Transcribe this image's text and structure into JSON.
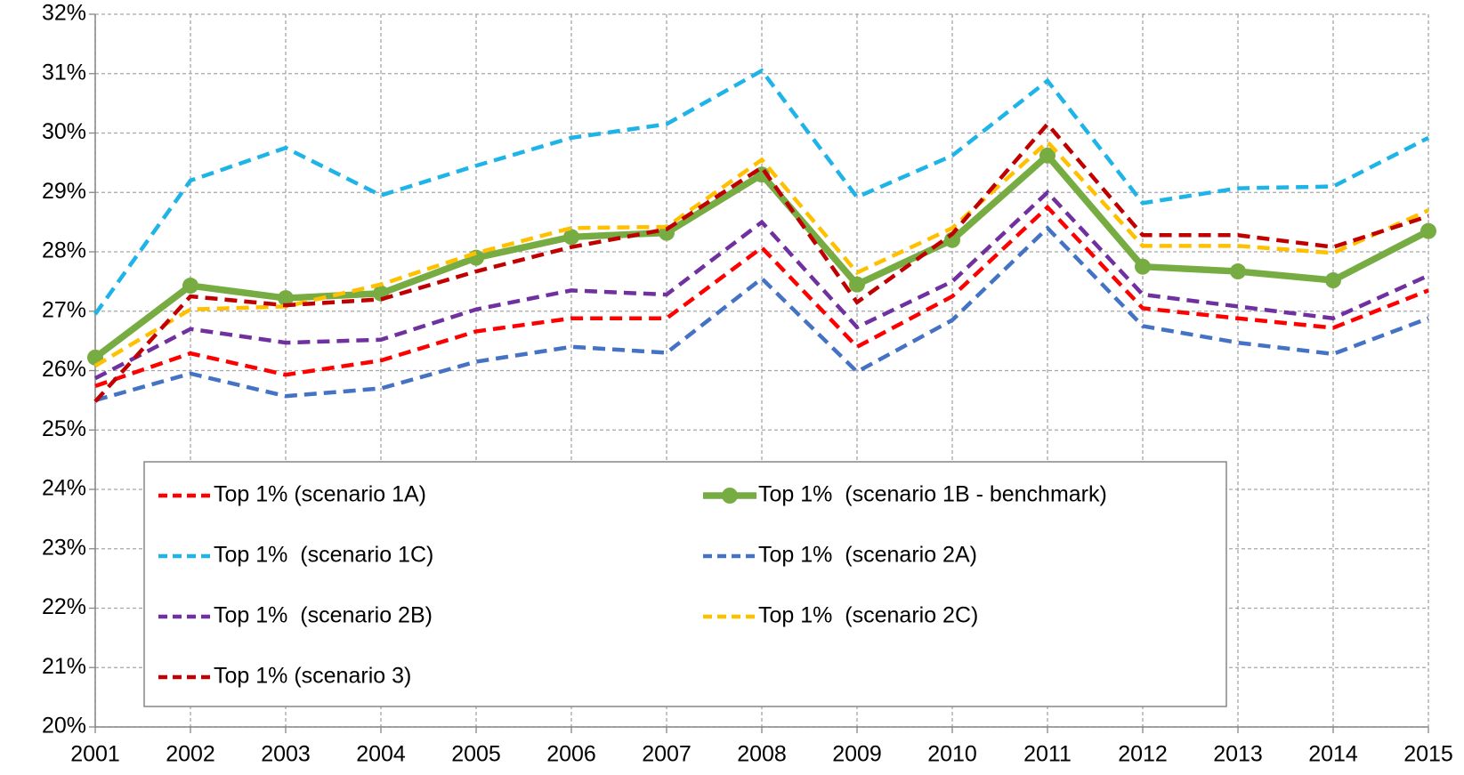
{
  "chart_data": {
    "type": "line",
    "x": [
      2001,
      2002,
      2003,
      2004,
      2005,
      2006,
      2007,
      2008,
      2009,
      2010,
      2011,
      2012,
      2013,
      2014,
      2015
    ],
    "xlim": [
      2001,
      2015
    ],
    "xticks": [
      2001,
      2002,
      2003,
      2004,
      2005,
      2006,
      2007,
      2008,
      2009,
      2010,
      2011,
      2012,
      2013,
      2014,
      2015
    ],
    "ylim": [
      20,
      32
    ],
    "yticks": [
      {
        "value": 20,
        "label": "20%"
      },
      {
        "value": 21,
        "label": "21%"
      },
      {
        "value": 22,
        "label": "22%"
      },
      {
        "value": 23,
        "label": "23%"
      },
      {
        "value": 24,
        "label": "24%"
      },
      {
        "value": 25,
        "label": "25%"
      },
      {
        "value": 26,
        "label": "26%"
      },
      {
        "value": 27,
        "label": "27%"
      },
      {
        "value": 28,
        "label": "28%"
      },
      {
        "value": 29,
        "label": "29%"
      },
      {
        "value": 30,
        "label": "30%"
      },
      {
        "value": 31,
        "label": "31%"
      },
      {
        "value": 32,
        "label": "32%"
      }
    ],
    "grid": true,
    "legend": "lower left",
    "series": [
      {
        "name": "Top 1% (scenario 1A)",
        "color": "#ff0000",
        "dashed": true,
        "values": [
          25.74,
          26.29,
          25.93,
          26.17,
          26.66,
          26.88,
          26.88,
          28.07,
          26.4,
          27.25,
          28.75,
          27.05,
          26.88,
          26.72,
          27.35
        ]
      },
      {
        "name": "Top 1%  (scenario 1B - benchmark)",
        "color": "#77ac43",
        "dashed": false,
        "marker": true,
        "values": [
          26.22,
          27.43,
          27.22,
          27.3,
          27.9,
          28.25,
          28.32,
          29.3,
          27.45,
          28.2,
          29.62,
          27.75,
          27.67,
          27.52,
          28.35
        ]
      },
      {
        "name": "Top 1%  (scenario 1C)",
        "color": "#1fb4e8",
        "dashed": true,
        "values": [
          26.95,
          29.2,
          29.75,
          28.95,
          29.45,
          29.92,
          30.15,
          31.05,
          28.92,
          29.62,
          30.88,
          28.82,
          29.07,
          29.1,
          29.92
        ]
      },
      {
        "name": "Top 1%  (scenario 2A)",
        "color": "#4472c4",
        "dashed": true,
        "values": [
          25.5,
          25.95,
          25.57,
          25.7,
          26.15,
          26.4,
          26.3,
          27.55,
          25.98,
          26.85,
          28.4,
          26.75,
          26.47,
          26.28,
          26.88
        ]
      },
      {
        "name": "Top 1%  (scenario 2B)",
        "color": "#7030a0",
        "dashed": true,
        "values": [
          25.87,
          26.7,
          26.47,
          26.52,
          27.03,
          27.35,
          27.28,
          28.5,
          26.73,
          27.5,
          29.0,
          27.28,
          27.08,
          26.88,
          27.6
        ]
      },
      {
        "name": "Top 1%  (scenario 2C)",
        "color": "#ffc000",
        "dashed": true,
        "values": [
          26.08,
          27.03,
          27.08,
          27.45,
          27.98,
          28.4,
          28.42,
          29.55,
          27.65,
          28.4,
          29.85,
          28.1,
          28.1,
          27.98,
          28.7
        ]
      },
      {
        "name": "Top 1% (scenario 3)",
        "color": "#c00000",
        "dashed": true,
        "values": [
          25.48,
          27.25,
          27.1,
          27.2,
          27.67,
          28.08,
          28.38,
          29.42,
          27.15,
          28.3,
          30.15,
          28.28,
          28.28,
          28.08,
          28.6
        ]
      }
    ]
  }
}
